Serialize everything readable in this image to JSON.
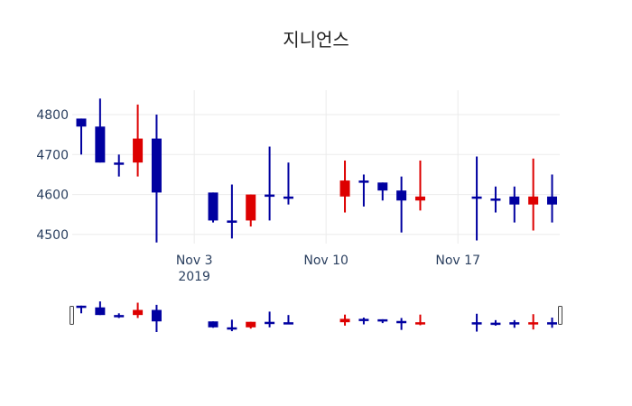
{
  "title": "지니언스",
  "colors": {
    "increasing": "#dd0000",
    "decreasing": "#0000a0",
    "grid": "#ebebeb",
    "handle": "#444444"
  },
  "chart_data": {
    "type": "candlestick",
    "title": "지니언스",
    "xlabel": "",
    "ylabel": "",
    "ylim": [
      4470,
      4850
    ],
    "grid": true,
    "rangeslider": true,
    "x_ticks": [
      {
        "date": "2019-11-03",
        "label": "Nov 3",
        "sublabel": "2019"
      },
      {
        "date": "2019-11-10",
        "label": "Nov 10",
        "sublabel": ""
      },
      {
        "date": "2019-11-17",
        "label": "Nov 17",
        "sublabel": ""
      }
    ],
    "y_ticks": [
      4500,
      4600,
      4700,
      4800
    ],
    "candles": [
      {
        "date": "2019-10-28",
        "open": 4790,
        "high": 4790,
        "low": 4700,
        "close": 4770
      },
      {
        "date": "2019-10-29",
        "open": 4770,
        "high": 4840,
        "low": 4680,
        "close": 4680
      },
      {
        "date": "2019-10-30",
        "open": 4680,
        "high": 4700,
        "low": 4645,
        "close": 4680
      },
      {
        "date": "2019-10-31",
        "open": 4680,
        "high": 4825,
        "low": 4645,
        "close": 4740
      },
      {
        "date": "2019-11-01",
        "open": 4740,
        "high": 4800,
        "low": 4480,
        "close": 4605
      },
      {
        "date": "2019-11-04",
        "open": 4605,
        "high": 4605,
        "low": 4530,
        "close": 4535
      },
      {
        "date": "2019-11-05",
        "open": 4535,
        "high": 4625,
        "low": 4490,
        "close": 4535
      },
      {
        "date": "2019-11-06",
        "open": 4535,
        "high": 4600,
        "low": 4520,
        "close": 4600
      },
      {
        "date": "2019-11-07",
        "open": 4600,
        "high": 4720,
        "low": 4535,
        "close": 4595
      },
      {
        "date": "2019-11-08",
        "open": 4595,
        "high": 4680,
        "low": 4575,
        "close": 4595
      },
      {
        "date": "2019-11-11",
        "open": 4595,
        "high": 4685,
        "low": 4555,
        "close": 4635
      },
      {
        "date": "2019-11-12",
        "open": 4635,
        "high": 4650,
        "low": 4570,
        "close": 4630
      },
      {
        "date": "2019-11-13",
        "open": 4630,
        "high": 4630,
        "low": 4585,
        "close": 4610
      },
      {
        "date": "2019-11-14",
        "open": 4610,
        "high": 4645,
        "low": 4505,
        "close": 4585
      },
      {
        "date": "2019-11-15",
        "open": 4585,
        "high": 4685,
        "low": 4560,
        "close": 4595
      },
      {
        "date": "2019-11-18",
        "open": 4595,
        "high": 4695,
        "low": 4485,
        "close": 4590
      },
      {
        "date": "2019-11-19",
        "open": 4590,
        "high": 4620,
        "low": 4555,
        "close": 4590
      },
      {
        "date": "2019-11-20",
        "open": 4595,
        "high": 4620,
        "low": 4530,
        "close": 4575
      },
      {
        "date": "2019-11-21",
        "open": 4575,
        "high": 4690,
        "low": 4510,
        "close": 4595
      },
      {
        "date": "2019-11-22",
        "open": 4595,
        "high": 4650,
        "low": 4530,
        "close": 4575
      }
    ]
  }
}
